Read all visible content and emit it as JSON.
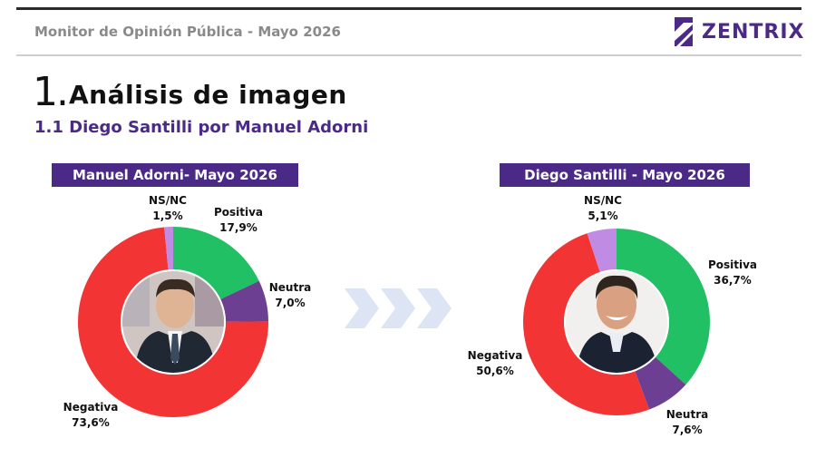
{
  "header": {
    "title": "Monitor de Opinión Pública - Mayo 2026",
    "logo_text": "ZENTRIX"
  },
  "section": {
    "number": "1.",
    "title": "Análisis de imagen",
    "subtitle": "1.1 Diego Santilli por Manuel Adorni"
  },
  "colors": {
    "positiva": "#22c064",
    "neutra": "#6c3f92",
    "negativa": "#f23434",
    "nsnc": "#c08be3",
    "accent": "#4b2a87"
  },
  "chart_data": [
    {
      "type": "pie",
      "title": "Manuel Adorni- Mayo 2026",
      "slices": [
        {
          "label": "Positiva",
          "value": 17.9,
          "value_label": "17,9%",
          "color": "#22c064"
        },
        {
          "label": "Neutra",
          "value": 7.0,
          "value_label": "7,0%",
          "color": "#6c3f92"
        },
        {
          "label": "Negativa",
          "value": 73.6,
          "value_label": "73,6%",
          "color": "#f23434"
        },
        {
          "label": "NS/NC",
          "value": 1.5,
          "value_label": "1,5%",
          "color": "#c08be3"
        }
      ]
    },
    {
      "type": "pie",
      "title": "Diego Santilli - Mayo 2026",
      "slices": [
        {
          "label": "Positiva",
          "value": 36.7,
          "value_label": "36,7%",
          "color": "#22c064"
        },
        {
          "label": "Neutra",
          "value": 7.6,
          "value_label": "7,6%",
          "color": "#6c3f92"
        },
        {
          "label": "Negativa",
          "value": 50.6,
          "value_label": "50,6%",
          "color": "#f23434"
        },
        {
          "label": "NS/NC",
          "value": 5.1,
          "value_label": "5,1%",
          "color": "#c08be3"
        }
      ]
    }
  ]
}
